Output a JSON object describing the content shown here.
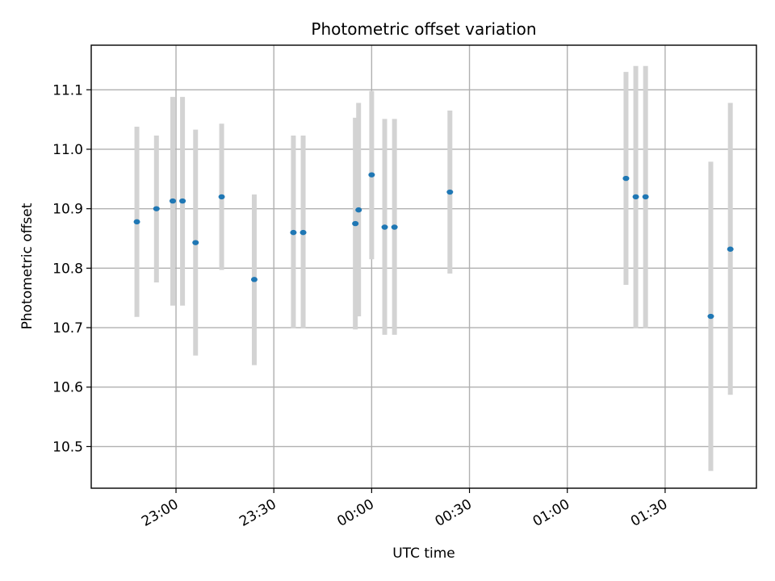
{
  "chart_data": {
    "type": "scatter",
    "title": "Photometric offset variation",
    "xlabel": "UTC time",
    "ylabel": "Photometric offset",
    "x_ticks": [
      "23:00",
      "23:30",
      "00:00",
      "00:30",
      "01:00",
      "01:30"
    ],
    "y_ticks": [
      "10.5",
      "10.6",
      "10.7",
      "10.8",
      "10.9",
      "11.0",
      "11.1"
    ],
    "xlim": [
      "22:34",
      "01:58"
    ],
    "ylim": [
      10.43,
      11.175
    ],
    "grid": true,
    "marker_color": "#1f77b4",
    "errorbar_color": "#d3d3d3",
    "points": [
      {
        "x": "22:48",
        "y": 10.878,
        "yerr_low": 10.718,
        "yerr_high": 11.038
      },
      {
        "x": "22:54",
        "y": 10.9,
        "yerr_low": 10.776,
        "yerr_high": 11.023
      },
      {
        "x": "22:59",
        "y": 10.913,
        "yerr_low": 10.737,
        "yerr_high": 11.088
      },
      {
        "x": "23:02",
        "y": 10.913,
        "yerr_low": 10.737,
        "yerr_high": 11.088
      },
      {
        "x": "23:06",
        "y": 10.843,
        "yerr_low": 10.653,
        "yerr_high": 11.033
      },
      {
        "x": "23:14",
        "y": 10.92,
        "yerr_low": 10.797,
        "yerr_high": 11.043
      },
      {
        "x": "23:24",
        "y": 10.781,
        "yerr_low": 10.637,
        "yerr_high": 10.924
      },
      {
        "x": "23:36",
        "y": 10.86,
        "yerr_low": 10.699,
        "yerr_high": 11.023
      },
      {
        "x": "23:39",
        "y": 10.86,
        "yerr_low": 10.699,
        "yerr_high": 11.023
      },
      {
        "x": "23:55",
        "y": 10.875,
        "yerr_low": 10.697,
        "yerr_high": 11.053
      },
      {
        "x": "23:56",
        "y": 10.898,
        "yerr_low": 10.719,
        "yerr_high": 11.078
      },
      {
        "x": "00:00",
        "y": 10.957,
        "yerr_low": 10.815,
        "yerr_high": 11.098
      },
      {
        "x": "00:04",
        "y": 10.869,
        "yerr_low": 10.688,
        "yerr_high": 11.051
      },
      {
        "x": "00:07",
        "y": 10.869,
        "yerr_low": 10.688,
        "yerr_high": 11.051
      },
      {
        "x": "00:24",
        "y": 10.928,
        "yerr_low": 10.791,
        "yerr_high": 11.065
      },
      {
        "x": "01:18",
        "y": 10.951,
        "yerr_low": 10.772,
        "yerr_high": 11.13
      },
      {
        "x": "01:21",
        "y": 10.92,
        "yerr_low": 10.699,
        "yerr_high": 11.14
      },
      {
        "x": "01:24",
        "y": 10.92,
        "yerr_low": 10.699,
        "yerr_high": 11.14
      },
      {
        "x": "01:44",
        "y": 10.719,
        "yerr_low": 10.459,
        "yerr_high": 10.979
      },
      {
        "x": "01:50",
        "y": 10.832,
        "yerr_low": 10.587,
        "yerr_high": 11.078
      }
    ]
  }
}
